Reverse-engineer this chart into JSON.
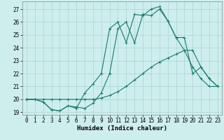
{
  "xlabel": "Humidex (Indice chaleur)",
  "background_color": "#cdeeed",
  "grid_color": "#b0d8d4",
  "line_color": "#1a7a6e",
  "xlim": [
    -0.5,
    23.5
  ],
  "ylim": [
    18.8,
    27.6
  ],
  "yticks": [
    19,
    20,
    21,
    22,
    23,
    24,
    25,
    26,
    27
  ],
  "xticks": [
    0,
    1,
    2,
    3,
    4,
    5,
    6,
    7,
    8,
    9,
    10,
    11,
    12,
    13,
    14,
    15,
    16,
    17,
    18,
    19,
    20,
    21,
    22,
    23
  ],
  "line1_x": [
    0,
    1,
    2,
    3,
    4,
    5,
    6,
    7,
    8,
    9,
    10,
    11,
    12,
    13,
    14,
    15,
    16,
    17,
    18,
    19,
    20,
    21,
    22,
    23
  ],
  "line1_y": [
    20.0,
    20.0,
    20.0,
    20.0,
    20.0,
    20.0,
    20.0,
    20.0,
    20.0,
    20.1,
    20.3,
    20.6,
    21.0,
    21.5,
    22.0,
    22.5,
    22.9,
    23.2,
    23.5,
    23.8,
    23.8,
    22.5,
    21.6,
    21.0
  ],
  "line2_x": [
    0,
    1,
    2,
    3,
    4,
    5,
    6,
    7,
    8,
    9,
    10,
    11,
    12,
    13,
    14,
    15,
    16,
    17,
    18,
    19,
    20,
    21,
    22,
    23
  ],
  "line2_y": [
    20.0,
    20.0,
    19.8,
    19.2,
    19.1,
    19.5,
    19.4,
    19.3,
    19.7,
    20.5,
    22.0,
    25.5,
    26.0,
    24.4,
    26.6,
    26.5,
    27.0,
    26.1,
    24.8,
    24.8,
    22.0,
    22.5,
    21.6,
    21.0
  ],
  "line3_x": [
    0,
    1,
    2,
    3,
    4,
    5,
    6,
    7,
    8,
    9,
    10,
    11,
    12,
    13,
    14,
    15,
    16,
    17,
    18,
    19,
    20,
    21,
    22,
    23
  ],
  "line3_y": [
    20.0,
    20.0,
    19.8,
    19.2,
    19.1,
    19.5,
    19.3,
    20.5,
    21.2,
    22.0,
    25.5,
    26.0,
    24.4,
    26.6,
    26.5,
    27.0,
    27.2,
    26.1,
    24.8,
    23.8,
    22.5,
    21.6,
    21.0,
    21.0
  ],
  "xlabel_fontsize": 6.5,
  "tick_fontsize": 5.5
}
